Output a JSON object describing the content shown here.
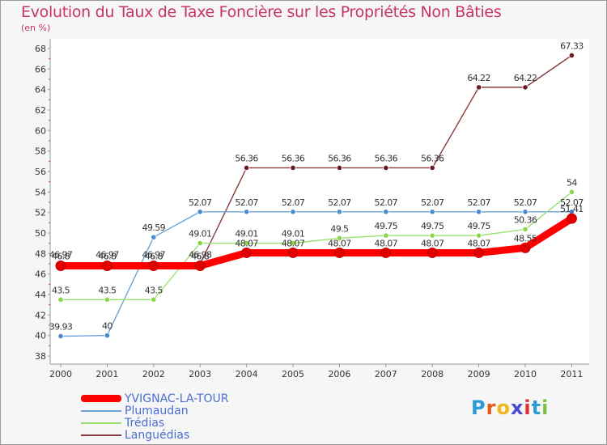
{
  "title": "Evolution du Taux de Taxe Foncière sur les Propriétés Non Bâties",
  "unit_label": "(en %)",
  "logo": {
    "text": "Proxiti",
    "letters": [
      "P",
      "r",
      "o",
      "x",
      "i",
      "t",
      "i"
    ],
    "colors": [
      "#2a9bd6",
      "#e25a1c",
      "#f2b51a",
      "#4a4ad0",
      "#e0302c",
      "#2a9bd6",
      "#7ac143"
    ]
  },
  "chart_data": {
    "type": "line",
    "title": "Evolution du Taux de Taxe Foncière sur les Propriétés Non Bâties",
    "ylabel": "(en %)",
    "xlabel": "",
    "ylim": [
      38,
      68
    ],
    "yticks": [
      38,
      40,
      42,
      44,
      46,
      48,
      50,
      52,
      54,
      56,
      58,
      60,
      62,
      64,
      66,
      68
    ],
    "x": [
      "2000",
      "2001",
      "2002",
      "2003",
      "2004",
      "2005",
      "2006",
      "2007",
      "2008",
      "2009",
      "2010",
      "2011"
    ],
    "series": [
      {
        "name": "YVIGNAC-LA-TOUR",
        "color": "#ff0000",
        "markerColor": "#e00000",
        "values": [
          46.8,
          46.8,
          46.8,
          46.8,
          48.07,
          48.07,
          48.07,
          48.07,
          48.07,
          48.07,
          48.55,
          51.41
        ],
        "labels": [
          "46.8",
          "46.8",
          "46.8",
          "46.8",
          "48.07",
          "48.07",
          "48.07",
          "48.07",
          "48.07",
          "48.07",
          "48.55",
          "51.41"
        ]
      },
      {
        "name": "Plumaudan",
        "color": "#6ba3d6",
        "markerColor": "#4a8ad0",
        "values": [
          39.93,
          40,
          49.59,
          52.07,
          52.07,
          52.07,
          52.07,
          52.07,
          52.07,
          52.07,
          52.07,
          52.07
        ],
        "labels": [
          "39.93",
          "40",
          "49.59",
          "52.07",
          "52.07",
          "52.07",
          "52.07",
          "52.07",
          "52.07",
          "52.07",
          "52.07",
          "52.07"
        ]
      },
      {
        "name": "Trédias",
        "color": "#9be072",
        "markerColor": "#8ad84a",
        "values": [
          43.5,
          43.5,
          43.5,
          49.01,
          49.01,
          49.01,
          49.5,
          49.75,
          49.75,
          49.75,
          50.36,
          54
        ],
        "labels": [
          "43.5",
          "43.5",
          "43.5",
          "49.01",
          "49.01",
          "49.01",
          "49.5",
          "49.75",
          "49.75",
          "49.75",
          "50.36",
          "54"
        ]
      },
      {
        "name": "Languédias",
        "color": "#8a3a3a",
        "markerColor": "#6a1a22",
        "values": [
          46.97,
          46.97,
          46.97,
          46.98,
          56.36,
          56.36,
          56.36,
          56.36,
          56.36,
          64.22,
          64.22,
          67.33
        ],
        "labels": [
          "46.97",
          "46.97",
          "46.97",
          "46.98",
          "56.36",
          "56.36",
          "56.36",
          "56.36",
          "56.36",
          "64.22",
          "64.22",
          "67.33"
        ]
      }
    ],
    "legend_position": "bottom-left",
    "grid": false
  }
}
